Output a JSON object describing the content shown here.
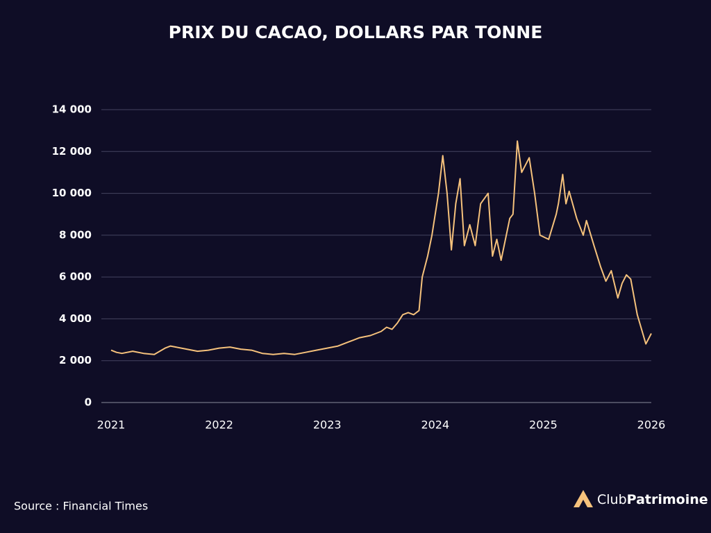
{
  "chart_data": {
    "type": "line",
    "title": "PRIX DU CACAO, DOLLARS PAR TONNE",
    "xlim": [
      2021,
      2026
    ],
    "xticks": [
      2021,
      2022,
      2023,
      2024,
      2025,
      2026
    ],
    "ylim": [
      0,
      14000
    ],
    "yticks": [
      0,
      {
        "value": 2000,
        "label": "2 000"
      },
      {
        "value": 4000,
        "label": "4 000"
      },
      {
        "value": 6000,
        "label": "6 000"
      },
      {
        "value": 8000,
        "label": "8 000"
      },
      {
        "value": 10000,
        "label": "10 000"
      },
      {
        "value": 12000,
        "label": "12 000"
      },
      {
        "value": 14000,
        "label": "14 000"
      }
    ],
    "grid": true,
    "series": [
      {
        "name": "Prix du cacao",
        "color": "#f6c27c",
        "x": [
          2021.0,
          2021.05,
          2021.1,
          2021.2,
          2021.3,
          2021.4,
          2021.5,
          2021.55,
          2021.6,
          2021.7,
          2021.8,
          2021.9,
          2022.0,
          2022.1,
          2022.2,
          2022.3,
          2022.4,
          2022.5,
          2022.6,
          2022.7,
          2022.8,
          2022.9,
          2023.0,
          2023.1,
          2023.2,
          2023.3,
          2023.4,
          2023.5,
          2023.55,
          2023.6,
          2023.65,
          2023.7,
          2023.75,
          2023.8,
          2023.85,
          2023.88,
          2023.93,
          2023.97,
          2024.03,
          2024.07,
          2024.11,
          2024.15,
          2024.19,
          2024.23,
          2024.27,
          2024.32,
          2024.37,
          2024.42,
          2024.49,
          2024.53,
          2024.57,
          2024.61,
          2024.69,
          2024.72,
          2024.76,
          2024.8,
          2024.87,
          2024.92,
          2024.97,
          2025.05,
          2025.12,
          2025.14,
          2025.18,
          2025.21,
          2025.24,
          2025.31,
          2025.37,
          2025.4,
          2025.47,
          2025.53,
          2025.58,
          2025.63,
          2025.69,
          2025.73,
          2025.77,
          2025.81,
          2025.87,
          2025.95,
          2026.0
        ],
        "values": [
          2500,
          2400,
          2350,
          2450,
          2350,
          2300,
          2600,
          2700,
          2650,
          2550,
          2450,
          2500,
          2600,
          2650,
          2550,
          2500,
          2350,
          2300,
          2350,
          2300,
          2400,
          2500,
          2600,
          2700,
          2900,
          3100,
          3200,
          3400,
          3600,
          3500,
          3800,
          4200,
          4300,
          4200,
          4400,
          6000,
          7000,
          8000,
          10000,
          11800,
          10000,
          7300,
          9500,
          10700,
          7500,
          8500,
          7500,
          9500,
          10000,
          7000,
          7800,
          6800,
          8800,
          9000,
          12500,
          11000,
          11700,
          10000,
          8000,
          7800,
          9000,
          9500,
          10900,
          9500,
          10100,
          8800,
          8000,
          8700,
          7500,
          6500,
          5800,
          6300,
          5000,
          5700,
          6100,
          5900,
          4200,
          2800,
          3300
        ]
      }
    ]
  },
  "footer": {
    "source": "Source : Financial Times",
    "brand_light": "Club",
    "brand_bold": "Patrimoine"
  }
}
